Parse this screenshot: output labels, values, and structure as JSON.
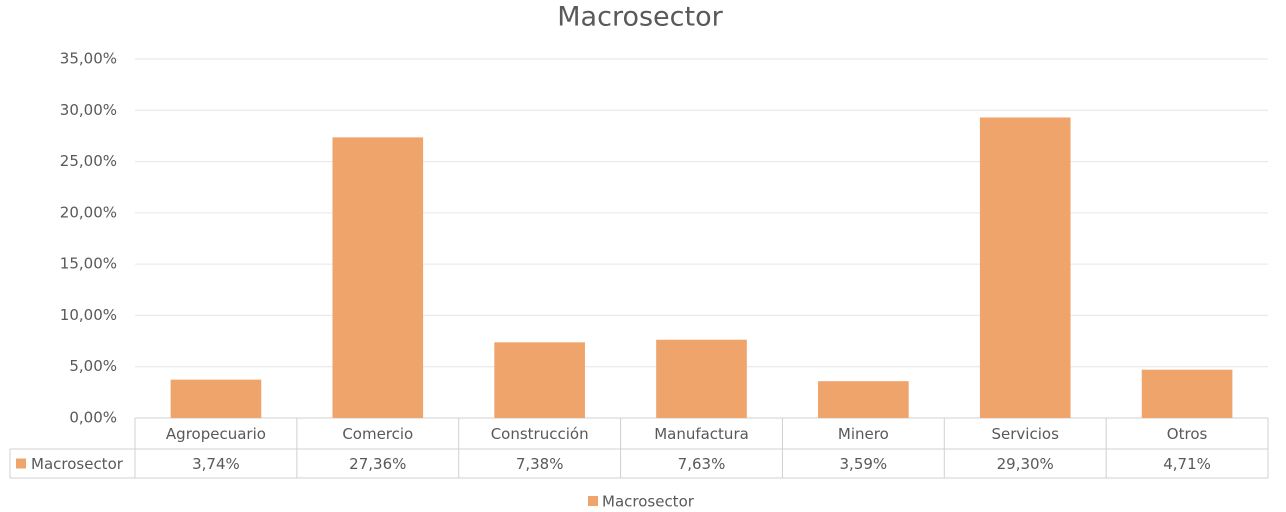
{
  "chart_data": {
    "type": "bar",
    "title": "Macrosector",
    "categories": [
      "Agropecuario",
      "Comercio",
      "Construcción",
      "Manufactura",
      "Minero",
      "Servicios",
      "Otros"
    ],
    "series": [
      {
        "name": "Macrosector",
        "color": "#efa46c",
        "values": [
          3.74,
          27.36,
          7.38,
          7.63,
          3.59,
          29.3,
          4.71
        ],
        "value_labels": [
          "3,74%",
          "27,36%",
          "7,38%",
          "7,63%",
          "3,59%",
          "29,30%",
          "4,71%"
        ]
      }
    ],
    "ylim": [
      0,
      35
    ],
    "yticks": [
      {
        "value": 0,
        "label": "0,00%"
      },
      {
        "value": 5,
        "label": "5,00%"
      },
      {
        "value": 10,
        "label": "10,00%"
      },
      {
        "value": 15,
        "label": "15,00%"
      },
      {
        "value": 20,
        "label": "20,00%"
      },
      {
        "value": 25,
        "label": "25,00%"
      },
      {
        "value": 30,
        "label": "30,00%"
      },
      {
        "value": 35,
        "label": "35,00%"
      }
    ],
    "grid": true,
    "legend": "bottom"
  }
}
